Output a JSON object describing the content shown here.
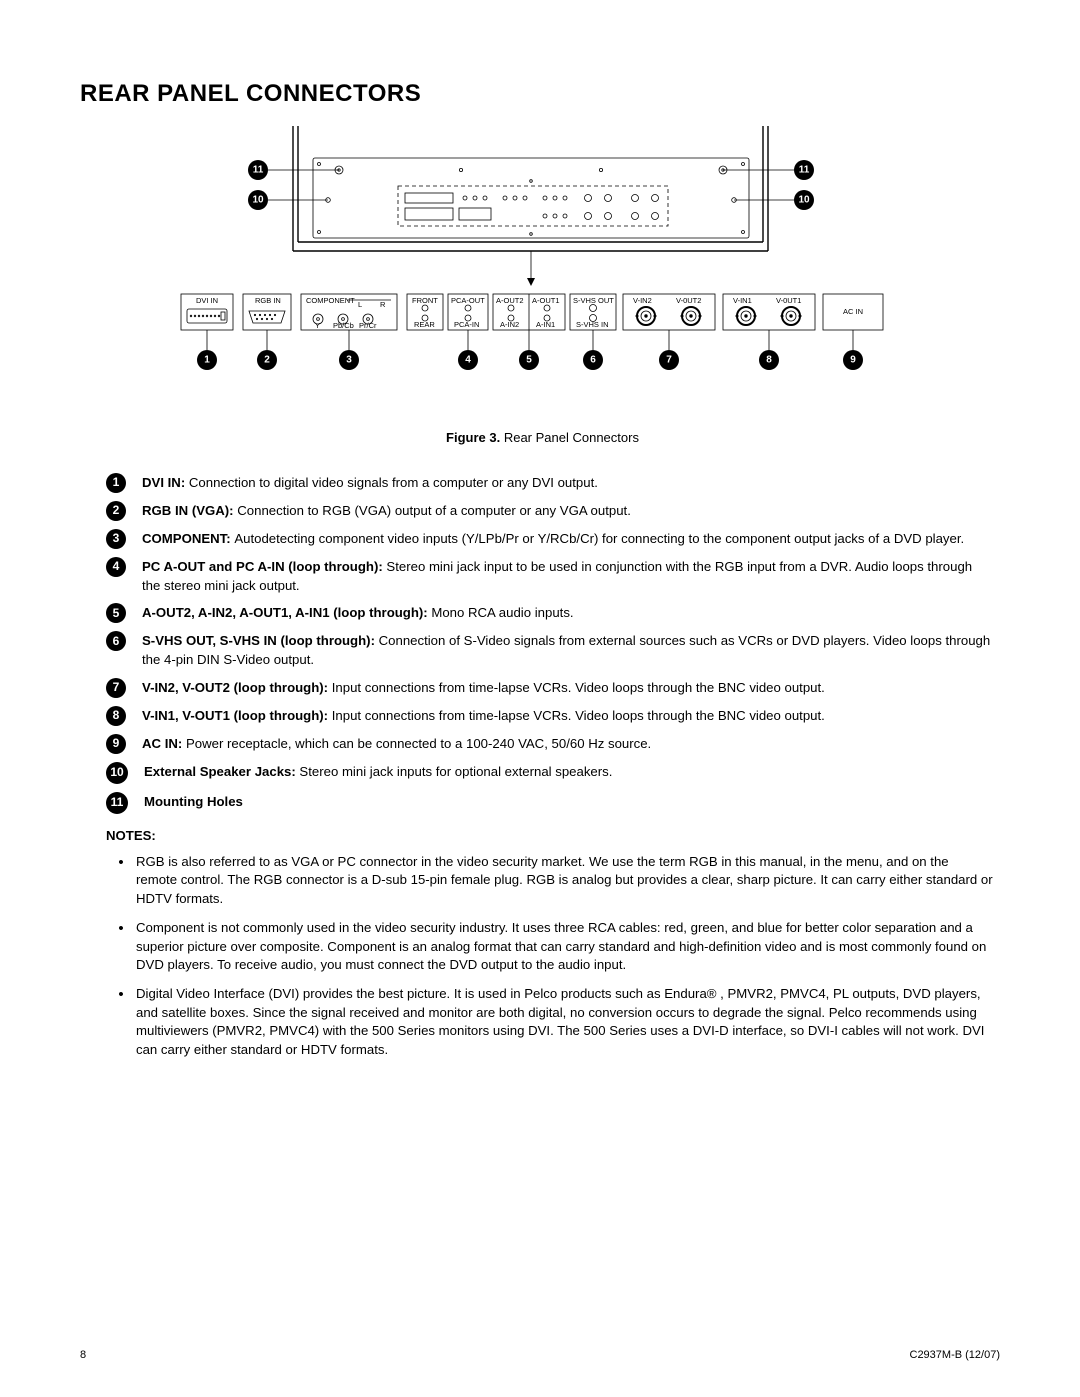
{
  "title": "REAR PANEL CONNECTORS",
  "figure_caption_bold": "Figure 3.",
  "figure_caption_rest": "  Rear Panel Connectors",
  "page_number": "8",
  "doc_code": "C2937M-B (12/07)",
  "notes_heading": "NOTES:",
  "diagram": {
    "connector_labels": {
      "dvi": "DVI IN",
      "rgb": "RGB IN",
      "comp": "COMPONENT",
      "l": "L",
      "r": "R",
      "y": "Y",
      "pbcb": "Pb/Cb",
      "prcr": "Pr/Cr",
      "front": "FRONT",
      "rear": "REAR",
      "pca_out": "PCA-OUT",
      "pca_in": "PCA-IN",
      "a_out2": "A-OUT2",
      "a_in2": "A-IN2",
      "a_out1": "A-OUT1",
      "a_in1": "A-IN1",
      "svhs_out": "S-VHS OUT",
      "svhs_in": "S-VHS IN",
      "v_in2": "V-IN2",
      "v_out2": "V-0UT2",
      "v_in1": "V-IN1",
      "v_out1": "V-0UT1",
      "ac": "AC IN"
    }
  },
  "definitions": [
    {
      "n": "1",
      "head": "DVI IN:  ",
      "body": "Connection to digital video signals from a computer or any DVI output."
    },
    {
      "n": "2",
      "head": "RGB IN (VGA):  ",
      "body": "Connection to RGB (VGA) output of a computer or any VGA output."
    },
    {
      "n": "3",
      "head": "COMPONENT:  ",
      "body": "Autodetecting component video inputs (Y/LPb/Pr or Y/RCb/Cr) for connecting to the component output jacks of a DVD player."
    },
    {
      "n": "4",
      "head": "PC A-OUT and PC A-IN (loop through):  ",
      "body": "Stereo mini jack input to be used in conjunction with the RGB input from a DVR. Audio loops through the stereo mini jack output."
    },
    {
      "n": "5",
      "head": "A-OUT2, A-IN2, A-OUT1, A-IN1 (loop through):  ",
      "body": "Mono RCA audio inputs."
    },
    {
      "n": "6",
      "head": "S-VHS OUT, S-VHS IN (loop through):  ",
      "body": "Connection of S-Video signals from external sources such as VCRs or DVD players. Video loops through the 4-pin DIN S-Video output."
    },
    {
      "n": "7",
      "head": "V-IN2, V-OUT2 (loop through):  ",
      "body": "Input connections from time-lapse VCRs. Video loops through the BNC video output."
    },
    {
      "n": "8",
      "head": "V-IN1, V-OUT1 (loop through):  ",
      "body": "Input connections from time-lapse VCRs. Video loops through the BNC video output."
    },
    {
      "n": "9",
      "head": "AC IN:  ",
      "body": "Power receptacle, which can be connected to a 100-240 VAC, 50/60 Hz source."
    },
    {
      "n": "10",
      "head": "External Speaker Jacks:  ",
      "body": "Stereo mini jack inputs for optional external speakers."
    },
    {
      "n": "11",
      "head": "Mounting Holes",
      "body": ""
    }
  ],
  "notes": [
    "RGB is also referred to as VGA or PC connector in the video security market. We use the term RGB in this manual, in the menu, and on the remote control. The RGB connector is a D-sub 15-pin female plug. RGB is analog but provides a clear, sharp picture. It can carry either standard or HDTV formats.",
    "Component is not commonly used in the video security industry. It uses three RCA cables: red, green, and blue for better color separation and a superior picture over composite. Component is an analog format that can carry standard and high-definition video and is most commonly found on DVD players. To receive audio, you must connect the DVD output to the audio input.",
    "Digital Video Interface (DVI) provides the best picture. It is used in Pelco products such as Endura® , PMVR2, PMVC4, PL outputs, DVD players, and satellite boxes. Since the signal received and monitor are both digital, no conversion occurs to degrade the signal. Pelco recommends using multiviewers (PMVR2, PMVC4) with the 500 Series monitors using DVI. The 500 Series uses a DVI-D interface, so DVI-I cables will not work. DVI can carry either standard or HDTV formats."
  ]
}
